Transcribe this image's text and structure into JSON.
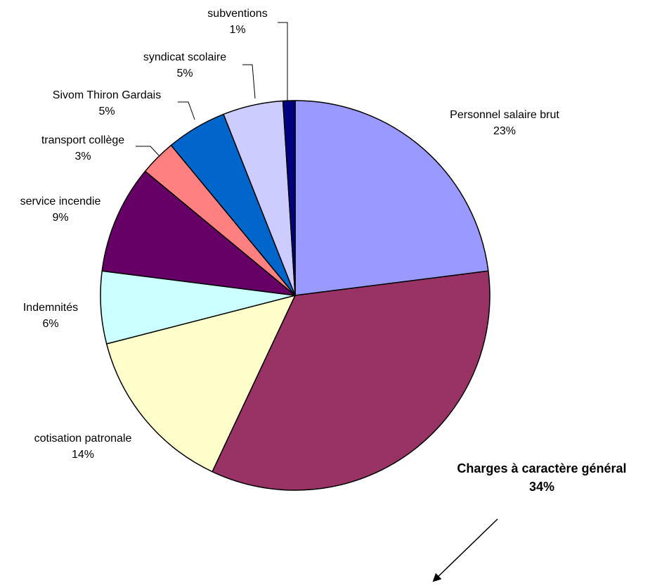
{
  "chart_data": {
    "type": "pie",
    "title": "",
    "slices": [
      {
        "name": "Personnel salaire brut",
        "value": 23,
        "value_label": "23%",
        "color": "#9999FF"
      },
      {
        "name": "Charges à caractère général",
        "value": 34,
        "value_label": "34%",
        "color": "#993366",
        "emphasis": true
      },
      {
        "name": "cotisation patronale",
        "value": 14,
        "value_label": "14%",
        "color": "#FFFFCC"
      },
      {
        "name": "Indemnités",
        "value": 6,
        "value_label": "6%",
        "color": "#CCFFFF"
      },
      {
        "name": "service incendie",
        "value": 9,
        "value_label": "9%",
        "color": "#660066"
      },
      {
        "name": "transport collège",
        "value": 3,
        "value_label": "3%",
        "color": "#FF8080"
      },
      {
        "name": "Sivom Thiron Gardais",
        "value": 5,
        "value_label": "5%",
        "color": "#0066CC"
      },
      {
        "name": "syndicat scolaire",
        "value": 5,
        "value_label": "5%",
        "color": "#CCCCFF"
      },
      {
        "name": "subventions",
        "value": 1,
        "value_label": "1%",
        "color": "#000080"
      }
    ],
    "start_at": "12-o-clock",
    "direction": "clockwise",
    "legend": "none",
    "arrow_annotation": "pointing down-left from the Charges à caractère général label"
  }
}
